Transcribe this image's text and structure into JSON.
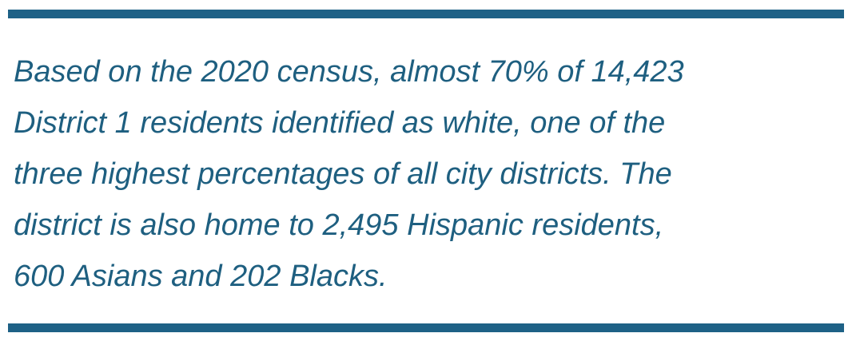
{
  "quote": {
    "lines": [
      "Based on the 2020 census, almost 70% of 14,423",
      "District 1 residents identified as white, one of the",
      "three highest percentages of all city districts. The",
      "district is also home to 2,495 Hispanic residents,",
      "600 Asians and 202 Blacks."
    ]
  }
}
